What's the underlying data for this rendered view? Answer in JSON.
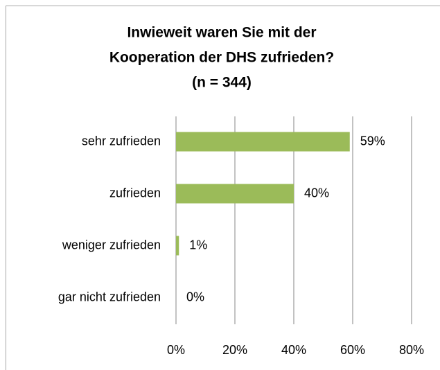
{
  "chart_data": {
    "type": "bar",
    "orientation": "horizontal",
    "title": [
      "Inwieweit waren Sie mit der",
      "Kooperation der DHS zufrieden?",
      "(n = 344)"
    ],
    "categories": [
      "sehr zufrieden",
      "zufrieden",
      "weniger zufrieden",
      "gar nicht zufrieden"
    ],
    "values": [
      59,
      40,
      1,
      0
    ],
    "value_labels": [
      "59%",
      "40%",
      "1%",
      "0%"
    ],
    "color": "#9bbb59",
    "xlim": [
      0,
      80
    ],
    "xticks": [
      {
        "value": 0,
        "label": "0%"
      },
      {
        "value": 20,
        "label": "20%"
      },
      {
        "value": 40,
        "label": "40%"
      },
      {
        "value": 60,
        "label": "60%"
      },
      {
        "value": 80,
        "label": "80%"
      }
    ],
    "grid": true
  }
}
